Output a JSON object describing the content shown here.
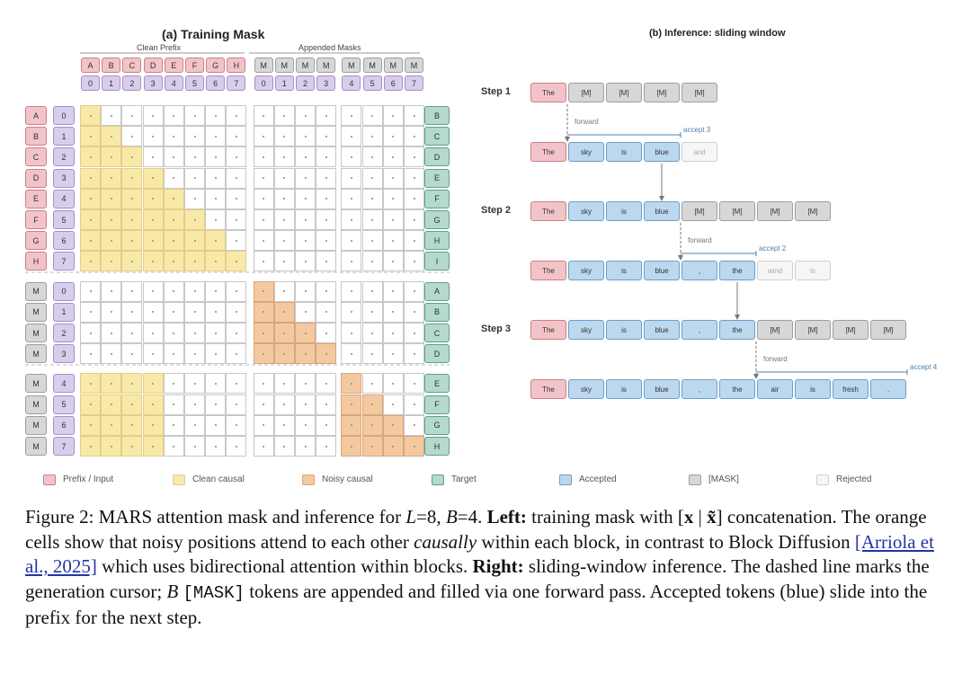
{
  "left_panel": {
    "title": "(a) Training Mask",
    "clean_prefix_label": "Clean Prefix",
    "appended_masks_label": "Appended Masks",
    "header_tokens": [
      "A",
      "B",
      "C",
      "D",
      "E",
      "F",
      "G",
      "H",
      "M",
      "M",
      "M",
      "M",
      "M",
      "M",
      "M",
      "M"
    ],
    "header_positions": [
      "0",
      "1",
      "2",
      "3",
      "4",
      "5",
      "6",
      "7",
      "0",
      "1",
      "2",
      "3",
      "4",
      "5",
      "6",
      "7"
    ],
    "row_tokens": [
      "A",
      "B",
      "C",
      "D",
      "E",
      "F",
      "G",
      "H",
      "M",
      "M",
      "M",
      "M",
      "M",
      "M",
      "M",
      "M"
    ],
    "row_positions": [
      "0",
      "1",
      "2",
      "3",
      "4",
      "5",
      "6",
      "7",
      "0",
      "1",
      "2",
      "3",
      "4",
      "5",
      "6",
      "7"
    ],
    "targets": [
      "B",
      "C",
      "D",
      "E",
      "F",
      "G",
      "H",
      "I",
      "A",
      "B",
      "C",
      "D",
      "E",
      "F",
      "G",
      "H"
    ]
  },
  "right_panel": {
    "title": "(b) Inference: sliding window",
    "forward_label": "forward",
    "steps": [
      {
        "label": "Step 1",
        "input": [
          {
            "t": "The",
            "k": "p"
          },
          {
            "t": "[M]",
            "k": "m"
          },
          {
            "t": "[M]",
            "k": "m"
          },
          {
            "t": "[M]",
            "k": "m"
          },
          {
            "t": "[M]",
            "k": "m"
          }
        ],
        "output": [
          {
            "t": "The",
            "k": "p"
          },
          {
            "t": "sky",
            "k": "a"
          },
          {
            "t": "is",
            "k": "a"
          },
          {
            "t": "blue",
            "k": "a"
          },
          {
            "t": "and",
            "k": "r"
          }
        ],
        "accept": "accept 3"
      },
      {
        "label": "Step 2",
        "input": [
          {
            "t": "The",
            "k": "p"
          },
          {
            "t": "sky",
            "k": "a"
          },
          {
            "t": "is",
            "k": "a"
          },
          {
            "t": "blue",
            "k": "a"
          },
          {
            "t": "[M]",
            "k": "m"
          },
          {
            "t": "[M]",
            "k": "m"
          },
          {
            "t": "[M]",
            "k": "m"
          },
          {
            "t": "[M]",
            "k": "m"
          }
        ],
        "output": [
          {
            "t": "The",
            "k": "p"
          },
          {
            "t": "sky",
            "k": "a"
          },
          {
            "t": "is",
            "k": "a"
          },
          {
            "t": "blue",
            "k": "a"
          },
          {
            "t": ",",
            "k": "a"
          },
          {
            "t": "the",
            "k": "a"
          },
          {
            "t": "wind",
            "k": "r"
          },
          {
            "t": "is",
            "k": "r"
          }
        ],
        "accept": "accept 2"
      },
      {
        "label": "Step 3",
        "input": [
          {
            "t": "The",
            "k": "p"
          },
          {
            "t": "sky",
            "k": "a"
          },
          {
            "t": "is",
            "k": "a"
          },
          {
            "t": "blue",
            "k": "a"
          },
          {
            "t": ",",
            "k": "a"
          },
          {
            "t": "the",
            "k": "a"
          },
          {
            "t": "[M]",
            "k": "m"
          },
          {
            "t": "[M]",
            "k": "m"
          },
          {
            "t": "[M]",
            "k": "m"
          },
          {
            "t": "[M]",
            "k": "m"
          }
        ],
        "output": [
          {
            "t": "The",
            "k": "p"
          },
          {
            "t": "sky",
            "k": "a"
          },
          {
            "t": "is",
            "k": "a"
          },
          {
            "t": "blue",
            "k": "a"
          },
          {
            "t": ",",
            "k": "a"
          },
          {
            "t": "the",
            "k": "a"
          },
          {
            "t": "air",
            "k": "a"
          },
          {
            "t": "is",
            "k": "a"
          },
          {
            "t": "fresh",
            "k": "a"
          },
          {
            "t": ".",
            "k": "a"
          }
        ],
        "accept": "accept 4"
      }
    ]
  },
  "legend": [
    {
      "label": "Prefix / Input",
      "color": "#f2c4c8"
    },
    {
      "label": "Clean causal",
      "color": "#f8e9a9"
    },
    {
      "label": "Noisy causal",
      "color": "#f3c9a2"
    },
    {
      "label": "Target",
      "color": "#b4d9cf"
    },
    {
      "label": "Accepted",
      "color": "#bcd8ef"
    },
    {
      "label": "[MASK]",
      "color": "#d7d7d7"
    },
    {
      "label": "Rejected",
      "color": "#f6f6f6"
    }
  ],
  "caption": {
    "p1": "Figure 2: MARS attention mask and inference for ",
    "L": "L",
    "eq1": "=8, ",
    "B": "B",
    "eq2": "=4. ",
    "left_bold": "Left:",
    "p2": " training mask with [",
    "x": "x",
    "bar": " | ",
    "xt": "x̃",
    "p3": "] concatenation. The orange cells show that noisy positions attend to each other ",
    "causally": "causally",
    "p4": " within each block, in contrast to Block Diffusion ",
    "citation": "[Arriola et al., 2025]",
    "p5": " which uses bidirectional attention within blocks. ",
    "right_bold": "Right:",
    "p6": " sliding-window inference. The dashed line marks the generation cursor; ",
    "B2": "B",
    "mask_token": "[MASK]",
    "p7": " tokens are appended and filled via one forward pass. Accepted tokens (blue) slide into the prefix for the next step."
  }
}
